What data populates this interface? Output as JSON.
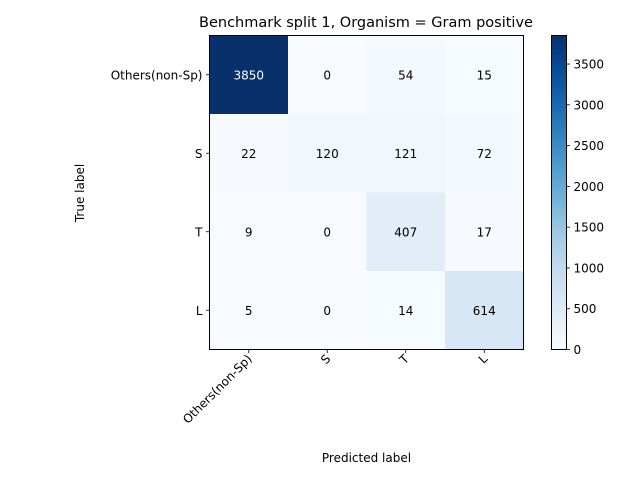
{
  "chart_data": {
    "type": "heatmap",
    "title": "Benchmark split 1, Organism = Gram positive",
    "xlabel": "Predicted label",
    "ylabel": "True label",
    "x_categories": [
      "Others(non-Sp)",
      "S",
      "T",
      "L"
    ],
    "y_categories": [
      "Others(non-Sp)",
      "S",
      "T",
      "L"
    ],
    "values": [
      [
        3850,
        0,
        54,
        15
      ],
      [
        22,
        120,
        121,
        72
      ],
      [
        9,
        0,
        407,
        17
      ],
      [
        5,
        0,
        14,
        614
      ]
    ],
    "colormap": "Blues",
    "color_range": [
      0,
      3850
    ],
    "colorbar_ticks": [
      0,
      500,
      1000,
      1500,
      2000,
      2500,
      3000,
      3500
    ],
    "colorbar_tick_labels": [
      "0",
      "500",
      "1000",
      "1500",
      "2000",
      "2500",
      "3000",
      "3500"
    ],
    "text_colors": {
      "dark_cell": "#ffffff",
      "light_cell": "#000000"
    }
  }
}
